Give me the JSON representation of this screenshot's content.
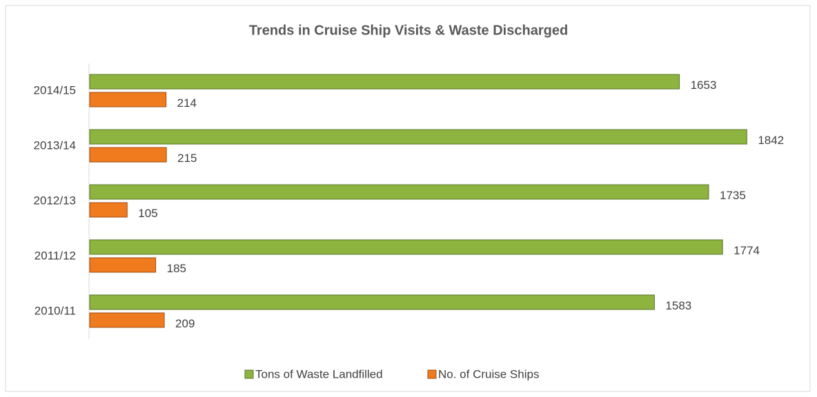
{
  "chart_data": {
    "type": "hbar",
    "title": "Trends in Cruise Ship Visits & Waste Discharged",
    "categories": [
      "2010/11",
      "2011/12",
      "2012/13",
      "2013/14",
      "2014/15"
    ],
    "series": [
      {
        "name": "Tons of Waste Landfilled",
        "color": "#8cb43f",
        "values": [
          1583,
          1774,
          1735,
          1842,
          1653
        ]
      },
      {
        "name": "No. of Cruise Ships",
        "color": "#f07a1e",
        "values": [
          209,
          185,
          105,
          215,
          214
        ]
      }
    ],
    "xlim": [
      0,
      2000
    ],
    "legend": "bottom"
  }
}
